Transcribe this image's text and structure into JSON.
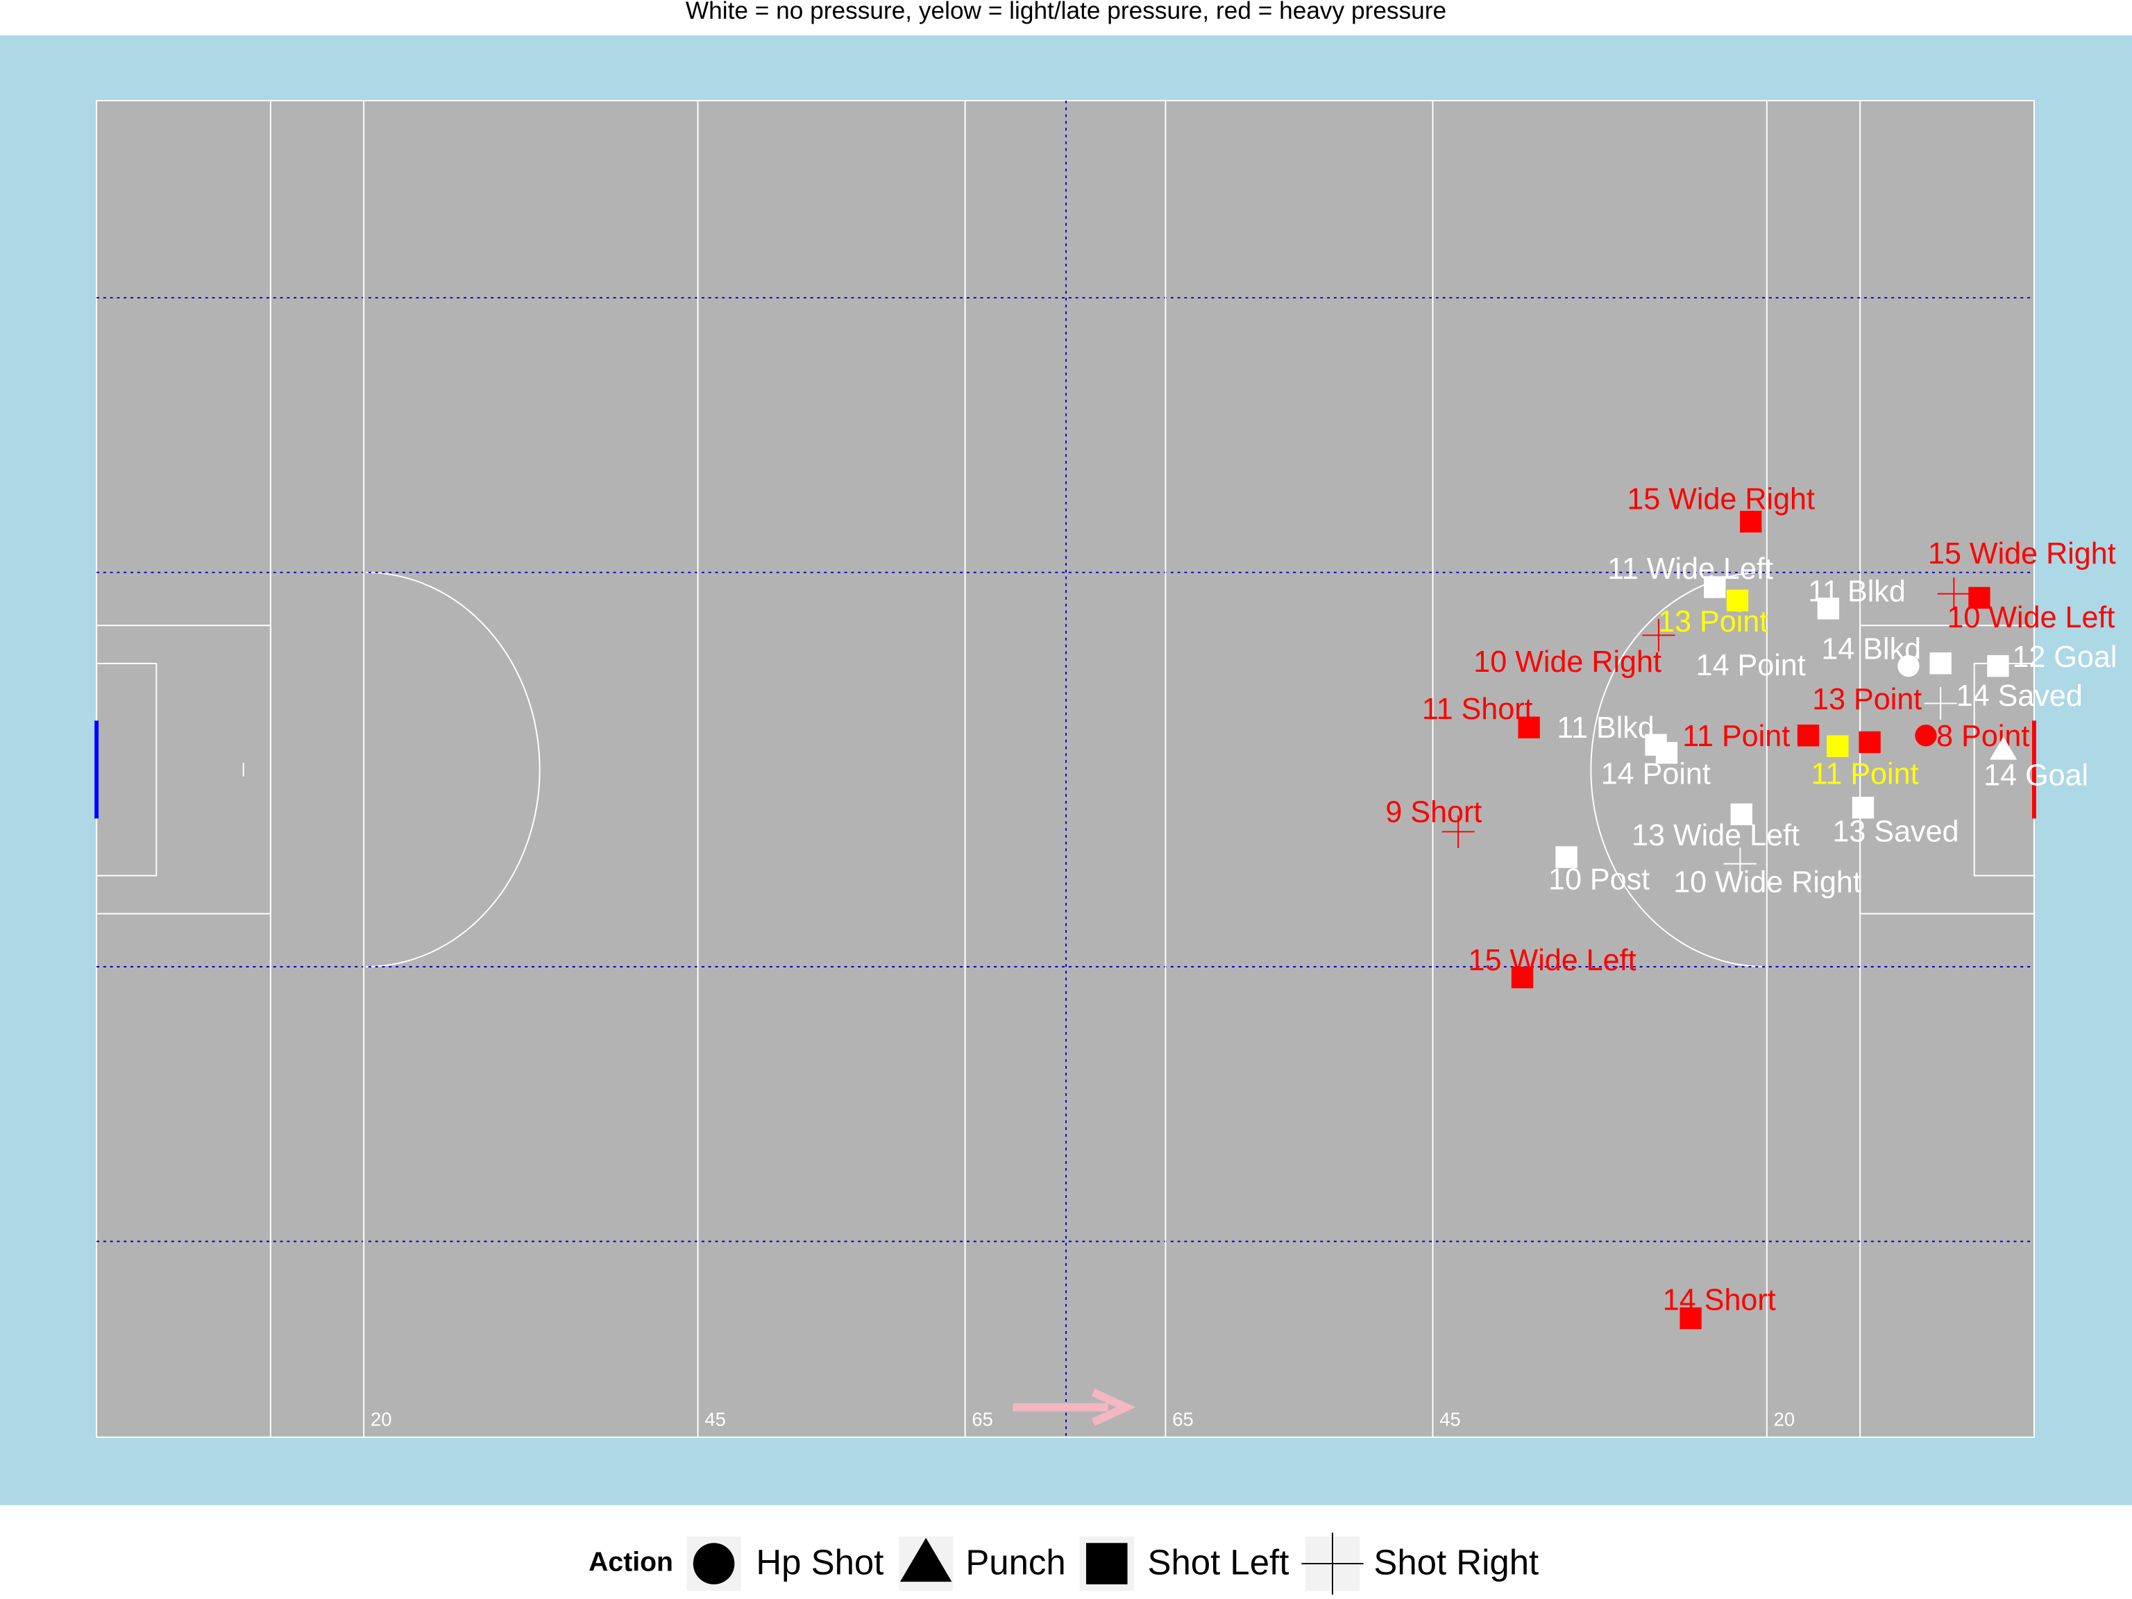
{
  "chart_data": {
    "type": "scatter",
    "title": "White = no pressure, yelow = light/late pressure, red = heavy pressure",
    "xlim": [
      0,
      145
    ],
    "ylim": [
      0,
      100
    ],
    "xticks": [
      20,
      45,
      65,
      {
        "value": 80,
        "label": "65"
      },
      {
        "value": 100,
        "label": "45"
      },
      {
        "value": 125,
        "label": "20"
      }
    ],
    "legend_title": "Action",
    "legend": [
      "Hp Shot",
      "Punch",
      "Shot Left",
      "Shot Right"
    ],
    "points": [
      {
        "x": 123.8,
        "y": 68.5,
        "label": "15 Wide Right",
        "color": "#ff0000",
        "shape": "Shot Left"
      },
      {
        "x": 139.0,
        "y": 63.1,
        "label": "15 Wide Right",
        "color": "#ff0000",
        "shape": "Shot Right"
      },
      {
        "x": 140.9,
        "y": 62.8,
        "label": "10 Wide Left",
        "color": "#ff0000",
        "shape": "Shot Left"
      },
      {
        "x": 121.1,
        "y": 63.6,
        "label": "11 Wide Left",
        "color": "#ffffff",
        "shape": "Shot Left"
      },
      {
        "x": 122.8,
        "y": 62.6,
        "label": "13 Point",
        "color": "#ffff00",
        "shape": "Shot Left"
      },
      {
        "x": 129.6,
        "y": 62.0,
        "label": "11 Blkd",
        "color": "#ffffff",
        "shape": "Shot Left"
      },
      {
        "x": 116.9,
        "y": 60.0,
        "label": "10 Wide Right",
        "color": "#ff0000",
        "shape": "Shot Right"
      },
      {
        "x": 135.6,
        "y": 57.7,
        "label": "14 Point",
        "color": "#ffffff",
        "shape": "Hp Shot"
      },
      {
        "x": 138.0,
        "y": 57.9,
        "label": "14 Blkd",
        "color": "#ffffff",
        "shape": "Shot Left"
      },
      {
        "x": 142.3,
        "y": 57.7,
        "label": "12 Goal",
        "color": "#ffffff",
        "shape": "Shot Left"
      },
      {
        "x": 138.0,
        "y": 54.9,
        "label": "14 Saved",
        "color": "#ffffff",
        "shape": "Shot Right"
      },
      {
        "x": 107.2,
        "y": 53.1,
        "label": "11 Short",
        "color": "#ff0000",
        "shape": "Shot Left"
      },
      {
        "x": 128.1,
        "y": 52.5,
        "label": "11 Point",
        "color": "#ff0000",
        "shape": "Shot Left"
      },
      {
        "x": 130.3,
        "y": 51.7,
        "label": "11 Point",
        "color": "#ffff00",
        "shape": "Shot Left"
      },
      {
        "x": 132.7,
        "y": 52.0,
        "label": "13 Point",
        "color": "#ff0000",
        "shape": "Shot Left"
      },
      {
        "x": 136.9,
        "y": 52.5,
        "label": "8 Point",
        "color": "#ff0000",
        "shape": "Hp Shot"
      },
      {
        "x": 142.7,
        "y": 51.4,
        "label": "14 Goal",
        "color": "#ffffff",
        "shape": "Punch"
      },
      {
        "x": 116.7,
        "y": 51.8,
        "label": "11 Blkd",
        "color": "#ffffff",
        "shape": "Shot Left"
      },
      {
        "x": 117.5,
        "y": 51.2,
        "label": "14 Point",
        "color": "#ffffff",
        "shape": "Shot Left"
      },
      {
        "x": 101.9,
        "y": 45.3,
        "label": "9 Short",
        "color": "#ff0000",
        "shape": "Shot Right"
      },
      {
        "x": 123.1,
        "y": 46.6,
        "label": "13 Wide Left",
        "color": "#ffffff",
        "shape": "Shot Left"
      },
      {
        "x": 132.2,
        "y": 47.1,
        "label": "13 Saved",
        "color": "#ffffff",
        "shape": "Shot Left"
      },
      {
        "x": 110.0,
        "y": 43.4,
        "label": "10 Post",
        "color": "#ffffff",
        "shape": "Shot Left"
      },
      {
        "x": 123.0,
        "y": 42.9,
        "label": "10 Wide Right",
        "color": "#ffffff",
        "shape": "Shot Right"
      },
      {
        "x": 106.7,
        "y": 34.4,
        "label": "15 Wide Left",
        "color": "#ff0000",
        "shape": "Shot Left"
      },
      {
        "x": 119.3,
        "y": 8.9,
        "label": "14 Short",
        "color": "#ff0000",
        "shape": "Shot Left"
      }
    ]
  }
}
